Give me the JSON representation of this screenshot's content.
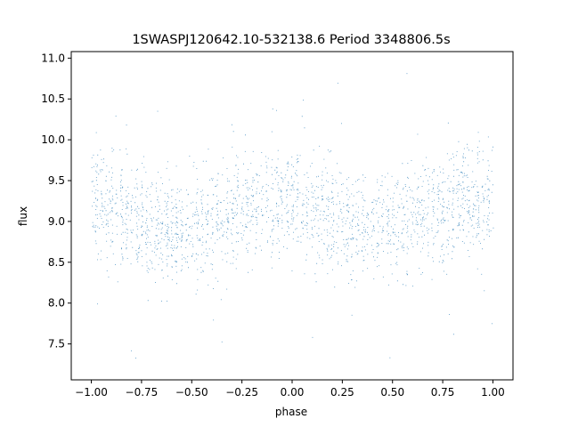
{
  "chart_data": {
    "type": "scatter",
    "title": "1SWASPJ120642.10-532138.6 Period 3348806.5s",
    "xlabel": "phase",
    "ylabel": "flux",
    "xlim": [
      -1.1,
      1.1
    ],
    "ylim": [
      7.06,
      11.08
    ],
    "x_ticks": [
      -1.0,
      -0.75,
      -0.5,
      -0.25,
      0.0,
      0.25,
      0.5,
      0.75,
      1.0
    ],
    "x_tick_labels": [
      "−1.00",
      "−0.75",
      "−0.50",
      "−0.25",
      "0.00",
      "0.25",
      "0.50",
      "0.75",
      "1.00"
    ],
    "y_ticks": [
      7.5,
      8.0,
      8.5,
      9.0,
      9.5,
      10.0,
      10.5,
      11.0
    ],
    "y_tick_labels": [
      "7.5",
      "8.0",
      "8.5",
      "9.0",
      "9.5",
      "10.0",
      "10.5",
      "11.0"
    ],
    "point_color": "#1f77b4",
    "grid": false,
    "x_range": [
      -1.0,
      1.0
    ],
    "mean_profile": {
      "phase": [
        -1.0,
        -0.9,
        -0.8,
        -0.7,
        -0.6,
        -0.5,
        -0.4,
        -0.3,
        -0.2,
        -0.1,
        0.0,
        0.1,
        0.2,
        0.3,
        0.4,
        0.5,
        0.6,
        0.7,
        0.8,
        0.9,
        1.0
      ],
      "flux": [
        9.25,
        9.15,
        9.0,
        8.95,
        8.9,
        8.95,
        9.0,
        9.1,
        9.2,
        9.28,
        9.25,
        9.15,
        9.0,
        8.95,
        8.9,
        8.95,
        9.0,
        9.1,
        9.2,
        9.28,
        9.25
      ]
    },
    "scatter_spread": 0.33,
    "point_count": 22000
  }
}
